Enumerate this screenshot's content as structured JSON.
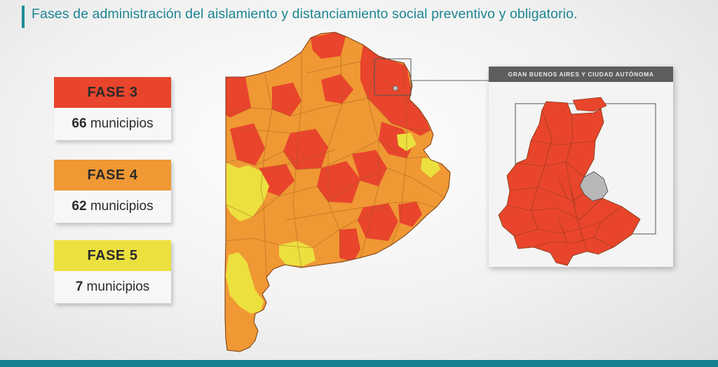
{
  "title": "Fases de administración del aislamiento y distanciamiento social preventivo y obligatorio.",
  "colors": {
    "fase3": "#e8452c",
    "fase4": "#ef9834",
    "fase5": "#ece03f",
    "accent": "#1c8d99",
    "caba": "#b8b8b8"
  },
  "legend": [
    {
      "label": "FASE 3",
      "count": "66",
      "unit": "municipios"
    },
    {
      "label": "FASE 4",
      "count": "62",
      "unit": "municipios"
    },
    {
      "label": "FASE 5",
      "count": "7",
      "unit": "municipios"
    }
  ],
  "inset": {
    "header": "GRAN BUENOS AIRES Y CIUDAD AUTÓNOMA"
  }
}
